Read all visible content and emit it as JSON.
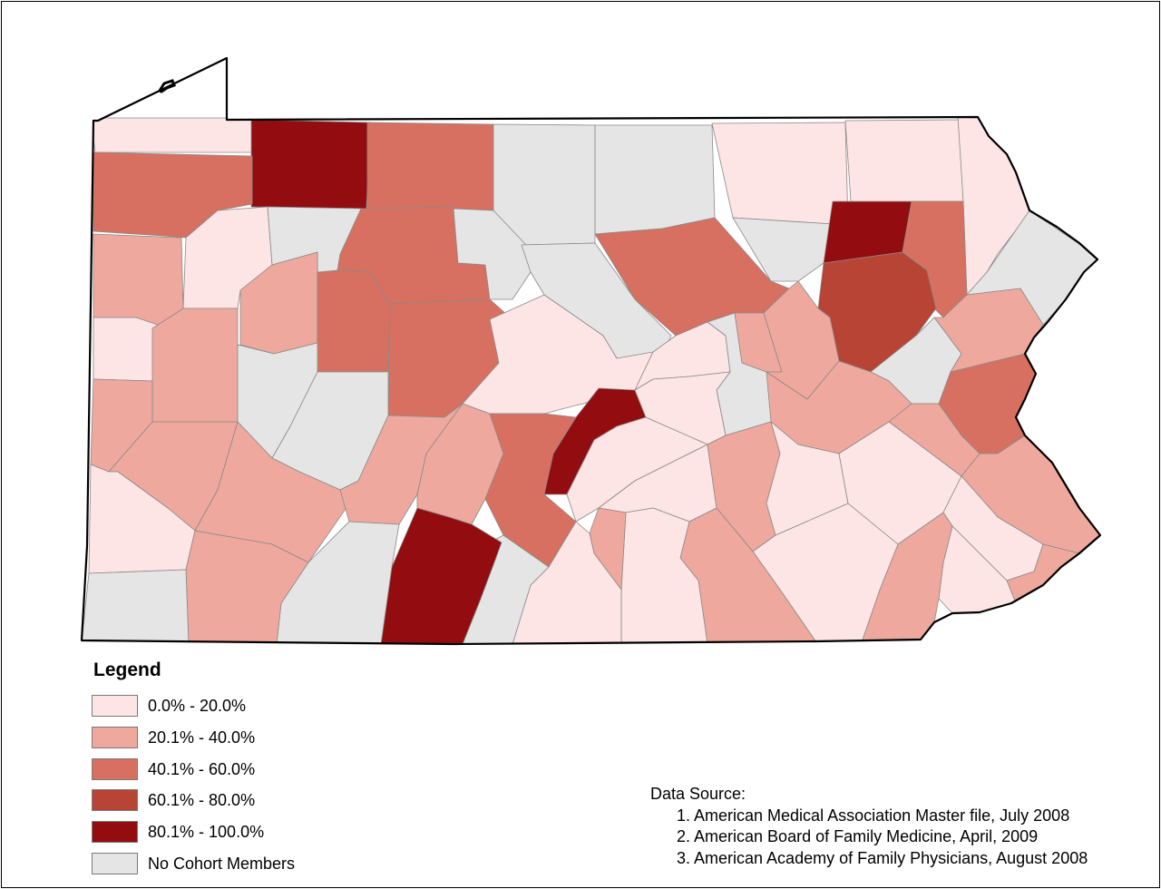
{
  "colors": {
    "c0": "#fde4e5",
    "c1": "#efa89d",
    "c2": "#d77060",
    "c3": "#b84436",
    "c4": "#930c0f",
    "none": "#e5e5e5",
    "county_border": "#8a8a8a",
    "state_border": "#000000"
  },
  "legend": {
    "title": "Legend",
    "items": [
      {
        "label": "0.0% - 20.0%",
        "color": "#fde4e5"
      },
      {
        "label": "20.1% - 40.0%",
        "color": "#efa89d"
      },
      {
        "label": "40.1% - 60.0%",
        "color": "#d77060"
      },
      {
        "label": "60.1% - 80.0%",
        "color": "#b84436"
      },
      {
        "label": "80.1% - 100.0%",
        "color": "#930c0f"
      },
      {
        "label": "No Cohort Members",
        "color": "#e5e5e5"
      }
    ]
  },
  "data_source": {
    "heading": "Data Source:",
    "items": [
      "1. American Medical Association Master file, July 2008",
      "2. American Board of Family Medicine, April, 2009",
      "3. American Academy of Family Physicians, August 2008"
    ]
  }
}
